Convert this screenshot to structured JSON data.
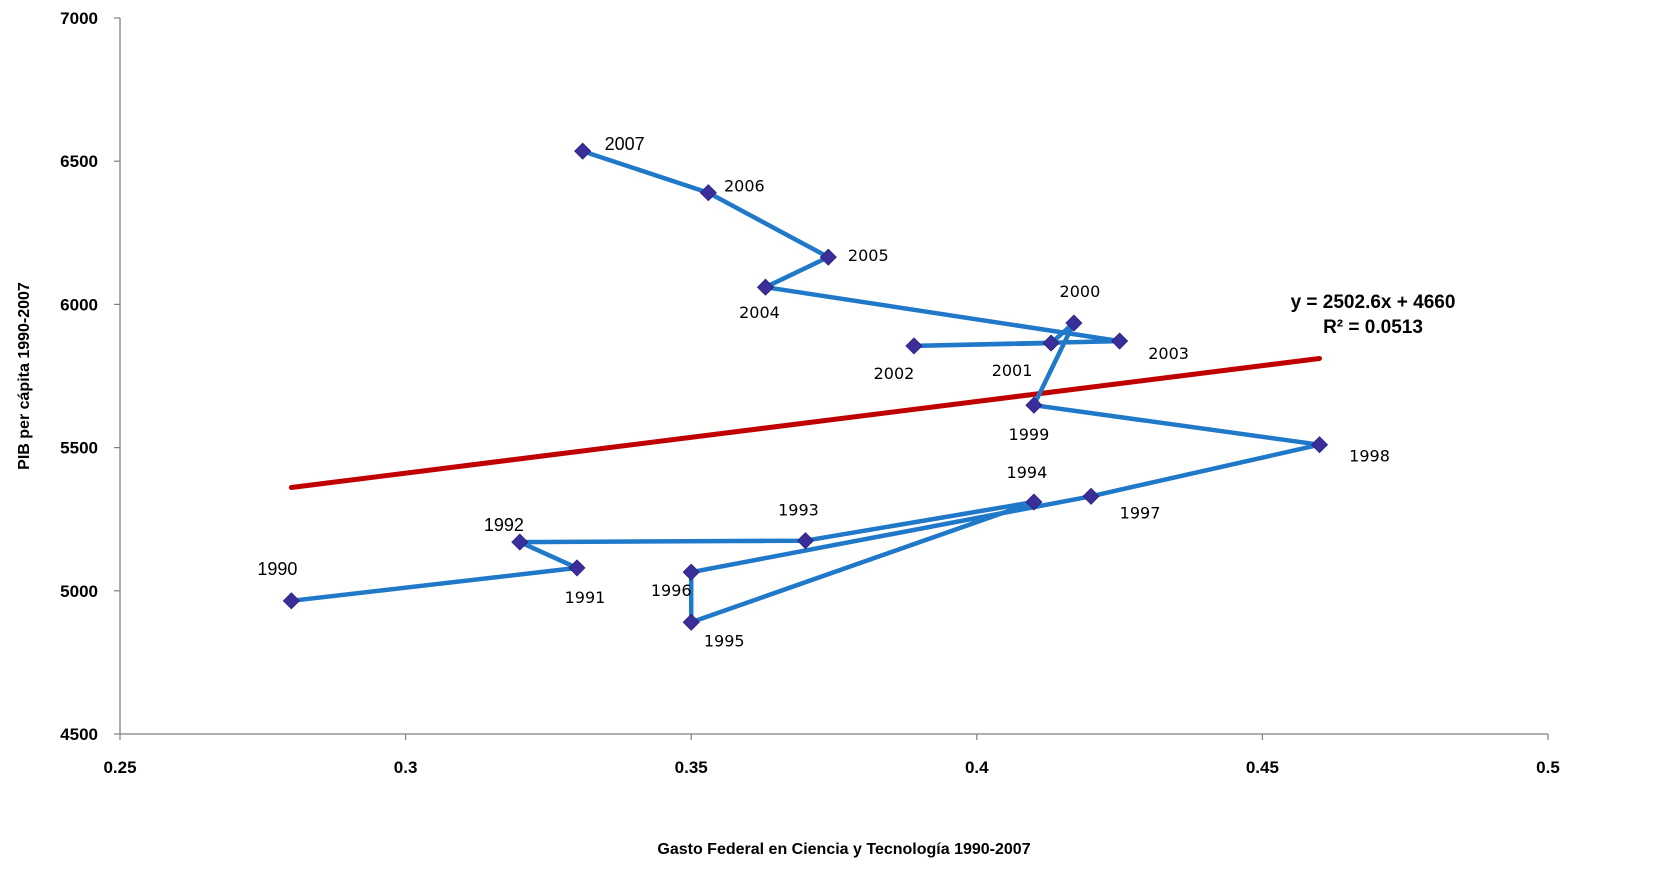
{
  "chart_data": {
    "type": "scatter",
    "title": "",
    "xlabel": "Gasto Federal en Ciencia y Tecnología 1990-2007",
    "ylabel": "PIB per cápita 1990-2007",
    "xlim": [
      0.25,
      0.5
    ],
    "ylim": [
      4500,
      7000
    ],
    "x_ticks": [
      "0.25",
      "0.3",
      "0.35",
      "0.4",
      "0.45",
      "0.5"
    ],
    "y_ticks": [
      "4500",
      "5000",
      "5500",
      "6000",
      "6500",
      "7000"
    ],
    "grid": false,
    "series": [
      {
        "connected": true,
        "color": "#1f78c8",
        "marker_color": "#3a2f9a",
        "points": [
          {
            "label": "1990",
            "x": 0.28,
            "y": 4965
          },
          {
            "label": "1991",
            "x": 0.33,
            "y": 5080
          },
          {
            "label": "1992",
            "x": 0.32,
            "y": 5170
          },
          {
            "label": "1993",
            "x": 0.37,
            "y": 5175
          },
          {
            "label": "1994",
            "x": 0.41,
            "y": 5310
          },
          {
            "label": "1995",
            "x": 0.35,
            "y": 4890
          },
          {
            "label": "1996",
            "x": 0.35,
            "y": 5065
          },
          {
            "label": "1997",
            "x": 0.42,
            "y": 5330
          },
          {
            "label": "1998",
            "x": 0.46,
            "y": 5510
          },
          {
            "label": "1999",
            "x": 0.41,
            "y": 5648
          },
          {
            "label": "2000",
            "x": 0.417,
            "y": 5935
          },
          {
            "label": "2001",
            "x": 0.413,
            "y": 5865
          },
          {
            "label": "2002",
            "x": 0.389,
            "y": 5855
          },
          {
            "label": "2003",
            "x": 0.425,
            "y": 5872
          },
          {
            "label": "2004",
            "x": 0.363,
            "y": 6060
          },
          {
            "label": "2005",
            "x": 0.374,
            "y": 6165
          },
          {
            "label": "2006",
            "x": 0.353,
            "y": 6390
          },
          {
            "label": "2007",
            "x": 0.331,
            "y": 6535
          }
        ]
      }
    ],
    "trendline": {
      "color": "#c00000",
      "x_range": [
        0.28,
        0.46
      ],
      "equation": "y = 2502.6x + 4660",
      "r_squared": "R² = 0.0513"
    }
  }
}
